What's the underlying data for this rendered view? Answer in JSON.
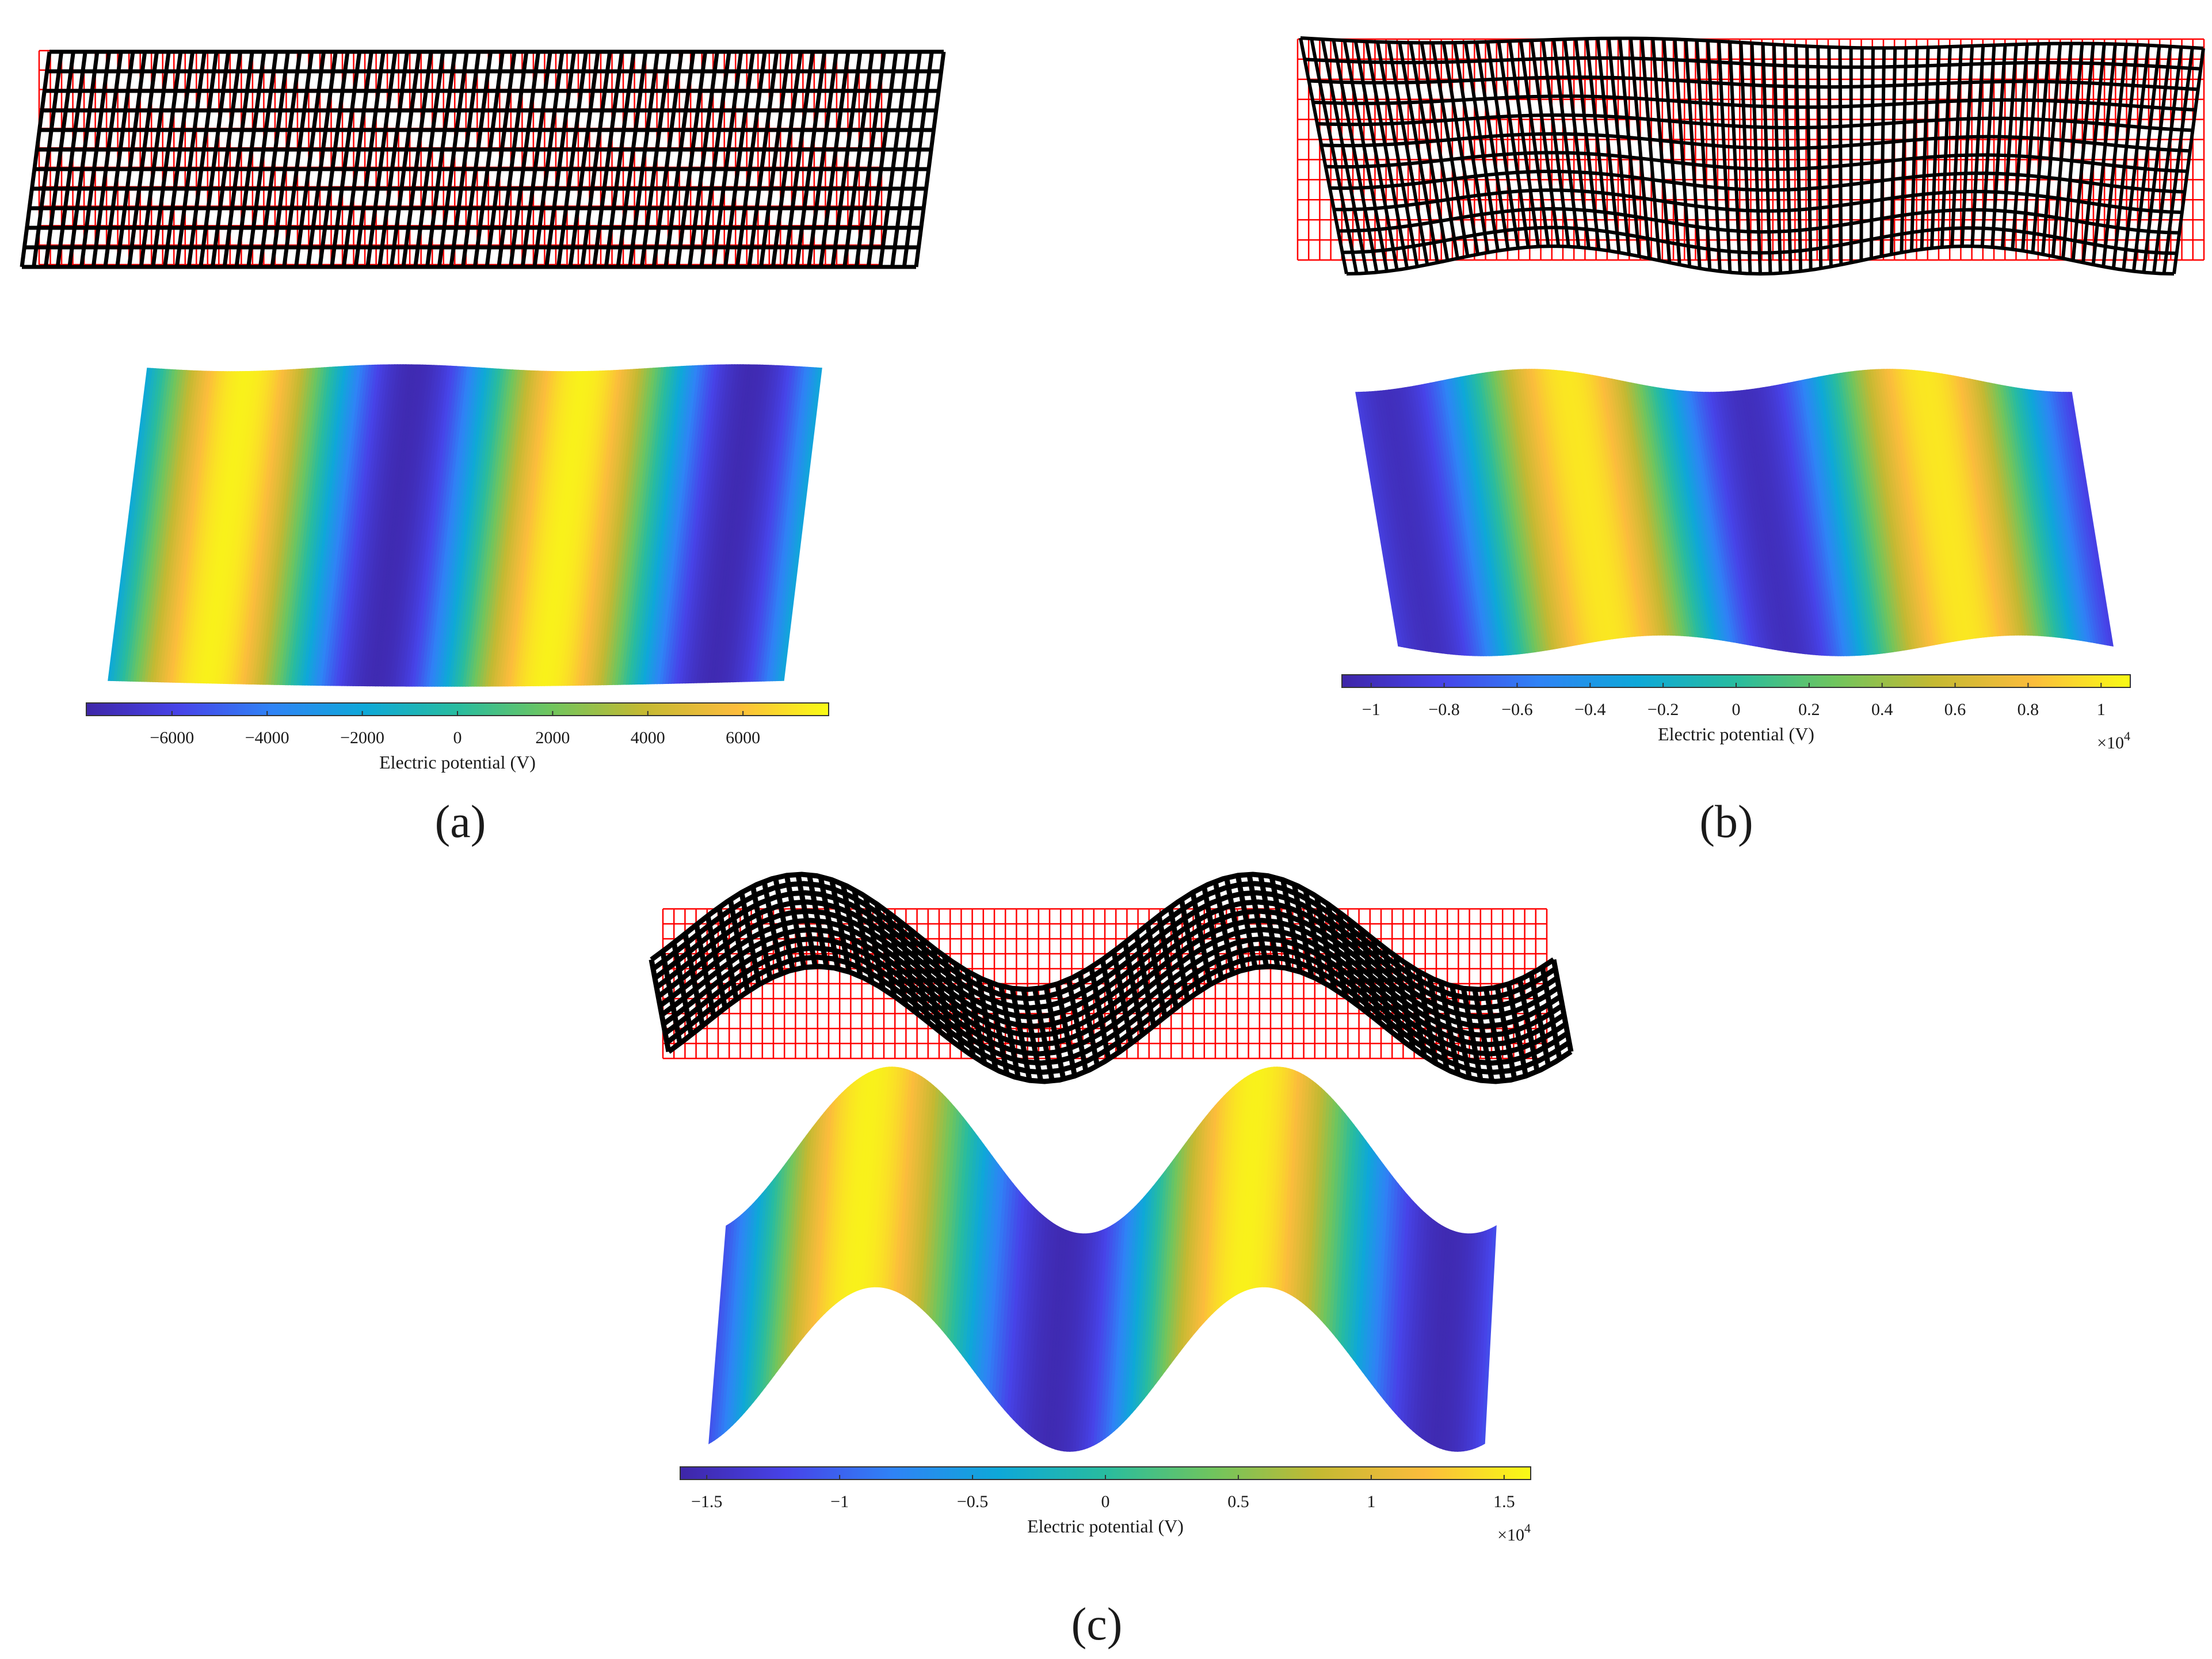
{
  "colors": {
    "background": "#ffffff",
    "undeformed_mesh": "#ff0000",
    "deformed_mesh": "#000000",
    "colormap": [
      "#3e26a8",
      "#4743e8",
      "#2f83f6",
      "#0ea8d8",
      "#28bc9f",
      "#6fc55e",
      "#c4b932",
      "#fbbc3c",
      "#f9fb15"
    ]
  },
  "chart_data": [
    {
      "type": "heatmap",
      "panel_label": "(a)",
      "panel_letter": "a",
      "mesh": {
        "undeformed": "rectangular grid",
        "deformed": "sheared grid"
      },
      "field": {
        "shape": "sheared band",
        "pattern": "two maxima and two minima across width"
      },
      "colorbar": {
        "label": "Electric potential (V)",
        "range": [
          -7800,
          7800
        ],
        "ticks": [
          -6000,
          -4000,
          -2000,
          0,
          2000,
          4000,
          6000
        ],
        "tick_labels": [
          "−6000",
          "−4000",
          "−2000",
          "0",
          "2000",
          "4000",
          "6000"
        ],
        "exponent": ""
      }
    },
    {
      "type": "heatmap",
      "panel_label": "(b)",
      "panel_letter": "b",
      "mesh": {
        "undeformed": "rectangular grid",
        "deformed": "sheared and bulged grid"
      },
      "field": {
        "shape": "wavy band",
        "pattern": "two maxima and two minima across width"
      },
      "colorbar": {
        "label": "Electric potential (V)",
        "range": [
          -1.08,
          1.08
        ],
        "ticks": [
          -1,
          -0.8,
          -0.6,
          -0.4,
          -0.2,
          0,
          0.2,
          0.4,
          0.6,
          0.8,
          1
        ],
        "tick_labels": [
          "−1",
          "−0.8",
          "−0.6",
          "−0.4",
          "−0.2",
          "0",
          "0.2",
          "0.4",
          "0.6",
          "0.8",
          "1"
        ],
        "exponent": "×10",
        "exponent_power": "4"
      }
    },
    {
      "type": "heatmap",
      "panel_label": "(c)",
      "panel_letter": "c",
      "mesh": {
        "undeformed": "rectangular grid",
        "deformed": "sinusoidally buckled grid"
      },
      "field": {
        "shape": "sinusoidal band",
        "pattern": "two maxima and two minima across width"
      },
      "colorbar": {
        "label": "Electric potential (V)",
        "range": [
          -1.6,
          1.6
        ],
        "ticks": [
          -1.5,
          -1,
          -0.5,
          0,
          0.5,
          1,
          1.5
        ],
        "tick_labels": [
          "−1.5",
          "−1",
          "−0.5",
          "0",
          "0.5",
          "1",
          "1.5"
        ],
        "exponent": "×10",
        "exponent_power": "4"
      }
    }
  ]
}
